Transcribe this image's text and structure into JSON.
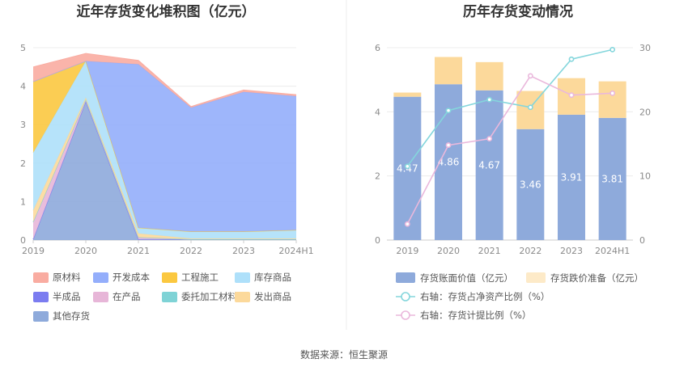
{
  "footer": {
    "source": "数据来源：恒生聚源"
  },
  "chart_data": [
    {
      "type": "area",
      "stacked": true,
      "title": "近年存货变化堆积图（亿元）",
      "categories": [
        "2019",
        "2020",
        "2021",
        "2022",
        "2023",
        "2024H1"
      ],
      "y_ticks": [
        "0",
        "1",
        "2",
        "3",
        "4",
        "5"
      ],
      "ylim": [
        0,
        5
      ],
      "grid": true,
      "legend_position": "bottom",
      "series": [
        {
          "name": "其他存货",
          "color": "#8eaadb",
          "values": [
            0.02,
            3.6,
            0.02,
            0.02,
            0.02,
            0.02
          ]
        },
        {
          "name": "半成品",
          "color": "#7b7cf0",
          "values": [
            0,
            0,
            0,
            0,
            0,
            0
          ]
        },
        {
          "name": "在产品",
          "color": "#e7b6d8",
          "values": [
            0.45,
            0.05,
            0.05,
            0,
            0,
            0
          ]
        },
        {
          "name": "委托加工材料",
          "color": "#7fd3d6",
          "values": [
            0,
            0,
            0,
            0,
            0,
            0
          ]
        },
        {
          "name": "发出商品",
          "color": "#fcd99b",
          "values": [
            0.3,
            0.05,
            0.1,
            0.02,
            0.02,
            0.02
          ]
        },
        {
          "name": "库存商品",
          "color": "#aee0fa",
          "values": [
            1.5,
            0.95,
            0.15,
            0.18,
            0.18,
            0.22
          ]
        },
        {
          "name": "工程施工",
          "color": "#fbc840",
          "values": [
            1.85,
            0,
            0,
            0,
            0,
            0
          ]
        },
        {
          "name": "开发成本",
          "color": "#94aefb",
          "values": [
            0,
            0,
            4.25,
            3.22,
            3.63,
            3.48
          ]
        },
        {
          "name": "原材料",
          "color": "#f9aca1",
          "values": [
            0.38,
            0.2,
            0.1,
            0.03,
            0.05,
            0.04
          ]
        }
      ],
      "legend_order": [
        "原材料",
        "开发成本",
        "工程施工",
        "库存商品",
        "半成品",
        "在产品",
        "委托加工材料",
        "发出商品",
        "其他存货"
      ]
    },
    {
      "type": "bar",
      "stacked": true,
      "title": "历年存货变动情况",
      "categories": [
        "2019",
        "2020",
        "2021",
        "2022",
        "2023",
        "2024H1"
      ],
      "y_left_ticks": [
        "0",
        "2",
        "4",
        "6"
      ],
      "y_right_ticks": [
        "0",
        "10",
        "20",
        "30"
      ],
      "ylim_left": [
        0,
        6
      ],
      "ylim_right": [
        0,
        30
      ],
      "grid": true,
      "legend_position": "bottom",
      "series": [
        {
          "name": "存货账面价值（亿元）",
          "kind": "bar",
          "axis": "left",
          "color": "#8eaadb",
          "values": [
            4.47,
            4.86,
            4.67,
            3.46,
            3.91,
            3.81
          ],
          "labels": [
            "4.47",
            "4.86",
            "4.67",
            "3.46",
            "3.91",
            "3.81"
          ]
        },
        {
          "name": "存货跌价准备（亿元）",
          "kind": "bar",
          "axis": "left",
          "color": "#fcd99b",
          "values": [
            0.13,
            0.85,
            0.88,
            1.19,
            1.14,
            1.14
          ]
        },
        {
          "name": "右轴：存货占净资产比例（%）",
          "kind": "line",
          "axis": "right",
          "color": "#84d6dc",
          "values": [
            11.5,
            20.2,
            21.9,
            20.7,
            28.2,
            29.7
          ]
        },
        {
          "name": "右轴：存货计提比例（%）",
          "kind": "line",
          "axis": "right",
          "color": "#eab8dc",
          "values": [
            2.5,
            14.8,
            15.8,
            25.6,
            22.6,
            22.9
          ]
        }
      ]
    }
  ]
}
